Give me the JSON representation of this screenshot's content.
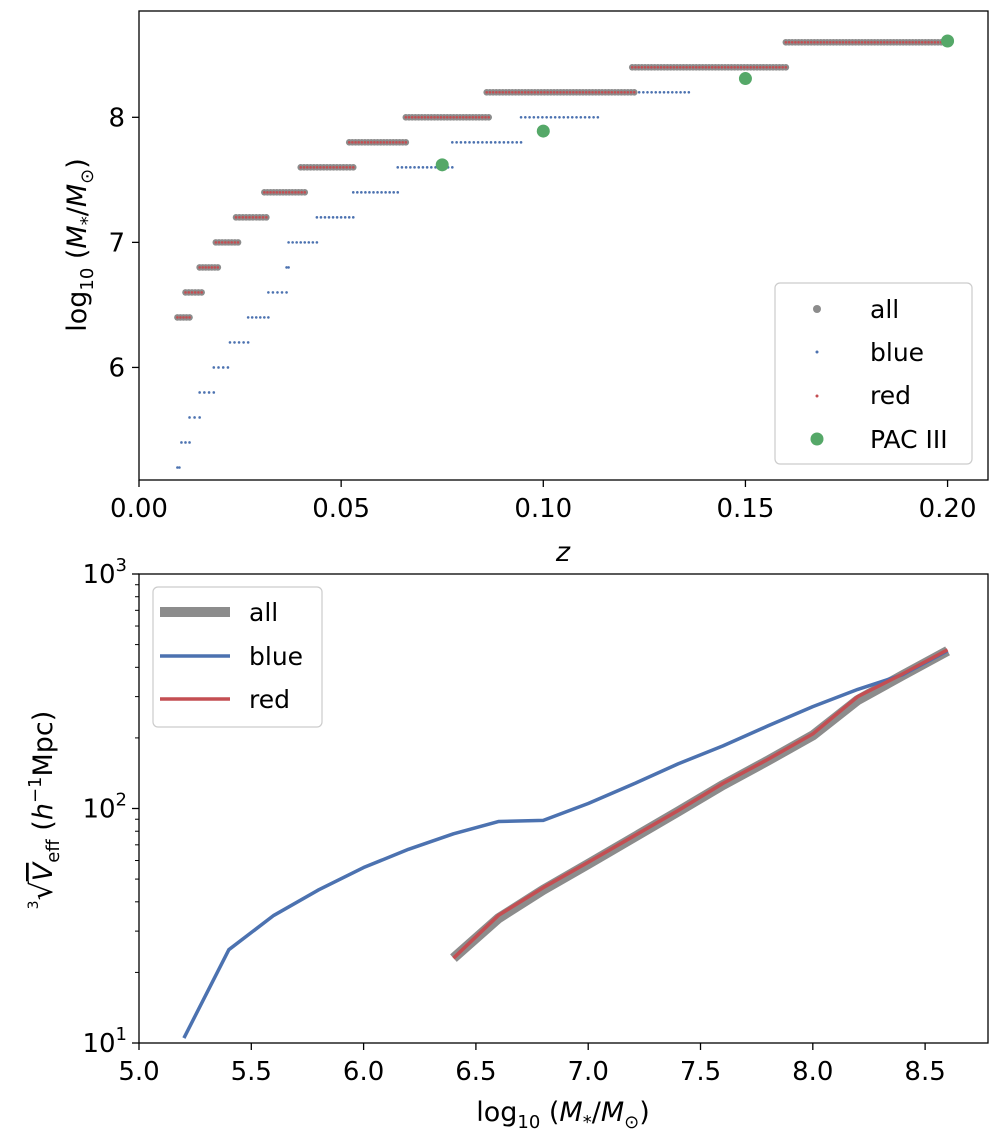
{
  "chart_data": [
    {
      "type": "scatter",
      "xlabel": "z",
      "ylabel": "log10 (M*/M⊙)",
      "xlim": [
        0.0,
        0.21
      ],
      "ylim": [
        5.1,
        8.85
      ],
      "x_ticks": [
        0.0,
        0.05,
        0.1,
        0.15,
        0.2
      ],
      "x_tick_labels": [
        "0.00",
        "0.05",
        "0.10",
        "0.15",
        "0.20"
      ],
      "y_ticks": [
        6,
        7,
        8
      ],
      "y_tick_labels": [
        "6",
        "7",
        "8"
      ],
      "legend_position": "lower right",
      "legend": [
        "all",
        "blue",
        "red",
        "PAC III"
      ],
      "colors": {
        "all": "#8c8c8c",
        "blue": "#4c72b0",
        "red": "#c44e52",
        "pac": "#55a868"
      },
      "mass_bins": [
        5.2,
        5.4,
        5.6,
        5.8,
        6.0,
        6.2,
        6.4,
        6.6,
        6.8,
        7.0,
        7.2,
        7.4,
        7.6,
        7.8,
        8.0,
        8.2,
        8.4,
        8.6
      ],
      "blue_zmin": [
        0.0095,
        0.0105,
        0.0125,
        0.015,
        0.0185,
        0.0225,
        0.027,
        0.032,
        0.0365,
        0.037,
        0.044,
        0.053,
        0.064,
        0.0775,
        0.0945,
        0.1135,
        0.136,
        0.16
      ],
      "blue_zmax": [
        0.01,
        0.0125,
        0.015,
        0.0185,
        0.022,
        0.027,
        0.032,
        0.0365,
        0.037,
        0.044,
        0.053,
        0.064,
        0.0775,
        0.0945,
        0.1135,
        0.136,
        0.16,
        0.2
      ],
      "red_zmin": [
        null,
        null,
        null,
        null,
        null,
        null,
        0.0095,
        0.0115,
        0.015,
        0.019,
        0.024,
        0.031,
        0.04,
        0.052,
        0.066,
        0.086,
        0.122,
        0.16
      ],
      "red_zmax": [
        null,
        null,
        null,
        null,
        null,
        null,
        0.0125,
        0.0155,
        0.0195,
        0.0245,
        0.0315,
        0.041,
        0.053,
        0.066,
        0.0865,
        0.1225,
        0.16,
        0.2
      ],
      "series": [
        {
          "name": "PAC III",
          "x": [
            0.075,
            0.1,
            0.15,
            0.2
          ],
          "y": [
            7.62,
            7.89,
            8.31,
            8.61
          ]
        }
      ]
    },
    {
      "type": "line",
      "xlabel": "log10 (M*/M⊙)",
      "ylabel": "∛V_eff (h⁻¹Mpc)",
      "xlim": [
        5.0,
        8.78
      ],
      "ylim": [
        10,
        1000
      ],
      "y_scale": "log",
      "x_ticks": [
        5.0,
        5.5,
        6.0,
        6.5,
        7.0,
        7.5,
        8.0,
        8.5
      ],
      "x_tick_labels": [
        "5.0",
        "5.5",
        "6.0",
        "6.5",
        "7.0",
        "7.5",
        "8.0",
        "8.5"
      ],
      "y_ticks": [
        10,
        100,
        1000
      ],
      "y_tick_labels": [
        {
          "base": "10",
          "exp": "1"
        },
        {
          "base": "10",
          "exp": "2"
        },
        {
          "base": "10",
          "exp": "3"
        }
      ],
      "legend_position": "upper left",
      "legend": [
        "all",
        "blue",
        "red"
      ],
      "colors": {
        "all": "#8c8c8c",
        "blue": "#4c72b0",
        "red": "#c44e52"
      },
      "series": [
        {
          "name": "all",
          "x": [
            6.4,
            6.6,
            6.8,
            7.0,
            7.2,
            7.4,
            7.6,
            7.8,
            8.0,
            8.2,
            8.4,
            8.6
          ],
          "y": [
            23,
            34,
            45,
            58,
            75,
            97,
            126,
            160,
            205,
            290,
            370,
            470
          ]
        },
        {
          "name": "blue",
          "x": [
            5.2,
            5.4,
            5.6,
            5.8,
            6.0,
            6.2,
            6.4,
            6.6,
            6.8,
            7.0,
            7.2,
            7.4,
            7.6,
            7.8,
            8.0,
            8.2,
            8.4,
            8.6
          ],
          "y": [
            10.5,
            25,
            35,
            45,
            56,
            67,
            78,
            88,
            89,
            105,
            127,
            155,
            185,
            225,
            272,
            322,
            372,
            470
          ]
        },
        {
          "name": "red",
          "x": [
            6.4,
            6.6,
            6.8,
            7.0,
            7.2,
            7.4,
            7.6,
            7.8,
            8.0,
            8.2,
            8.4,
            8.6
          ],
          "y": [
            23,
            35,
            46,
            59,
            76,
            98,
            128,
            162,
            208,
            300,
            375,
            475
          ]
        }
      ]
    }
  ]
}
